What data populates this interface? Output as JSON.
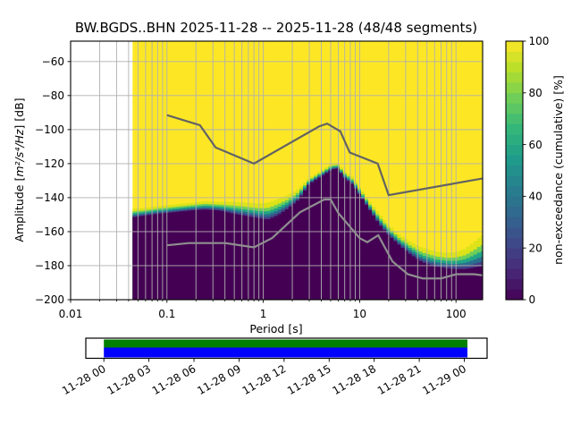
{
  "title": "BW.BGDS..BHN   2025-11-28 -- 2025-11-28  (48/48 segments)",
  "axes": {
    "xlabel": "Period [s]",
    "ylabel_prefix": "Amplitude [",
    "ylabel_math": "m²/s⁴/Hz",
    "ylabel_suffix": "] [dB]",
    "x_tick_labels": [
      "0.01",
      "0.1",
      "1",
      "10",
      "100"
    ],
    "x_tick_values": [
      0.01,
      0.1,
      1,
      10,
      100
    ],
    "x_minor_subs": [
      2,
      3,
      4,
      5,
      6,
      7,
      8,
      9
    ],
    "y_tick_labels": [
      "−60",
      "−80",
      "−100",
      "−120",
      "−140",
      "−160",
      "−180",
      "−200"
    ],
    "y_tick_values": [
      -60,
      -80,
      -100,
      -120,
      -140,
      -160,
      -180,
      -200
    ],
    "xlim": [
      0.01,
      189
    ],
    "ylim": [
      -200,
      -48
    ],
    "x_scale": "log",
    "grid": true
  },
  "colorbar": {
    "label": "non-exceedance (cumulative) [%]",
    "tick_labels": [
      "100",
      "80",
      "60",
      "40",
      "20",
      "0"
    ],
    "tick_values": [
      100,
      80,
      60,
      40,
      20,
      0
    ],
    "lim": [
      0,
      100
    ],
    "colormap": "viridis",
    "steps": 25
  },
  "chart_data": {
    "type": "heatmap",
    "title": "BW.BGDS..BHN   2025-11-28 -- 2025-11-28  (48/48 segments)",
    "xlabel": "Period [s]",
    "ylabel": "Amplitude [m²/s⁴/Hz] [dB]",
    "colorbar_label": "non-exceedance (cumulative) [%]",
    "x_scale": "log",
    "xlim": [
      0.01,
      189
    ],
    "ylim": [
      -200,
      -48
    ],
    "value_lim": [
      0,
      100
    ],
    "period_range": [
      0.044,
      189
    ],
    "distribution_band": {
      "description": "cumulative PPSD: non-exceedance is 100% (yellow) above top_db and 0% (dark purple) below bottom_db",
      "periods": [
        0.045,
        0.06,
        0.08,
        0.12,
        0.18,
        0.25,
        0.35,
        0.5,
        0.7,
        0.9,
        1.1,
        1.4,
        1.8,
        2.3,
        3.0,
        4.0,
        5.0,
        5.8,
        7.0,
        8.5,
        10.5,
        13,
        16,
        20,
        26,
        34,
        45,
        60,
        80,
        100,
        125,
        155,
        190
      ],
      "top_db": [
        -146.5,
        -146,
        -145,
        -144,
        -143,
        -142,
        -142.5,
        -142.5,
        -143,
        -143.5,
        -143,
        -141,
        -138.5,
        -135,
        -128.5,
        -124,
        -120.5,
        -119.5,
        -124.5,
        -128,
        -135.5,
        -143,
        -149.5,
        -156,
        -162,
        -166,
        -169.5,
        -171.5,
        -172.5,
        -172,
        -170,
        -166,
        -161.5
      ],
      "bottom_db": [
        -151.5,
        -150.5,
        -149.5,
        -148.5,
        -147.5,
        -147,
        -147.5,
        -149.5,
        -151,
        -152,
        -153,
        -150.5,
        -146.5,
        -141.5,
        -132,
        -127.5,
        -124,
        -122.5,
        -128.5,
        -132.5,
        -140,
        -148,
        -155.5,
        -162,
        -168,
        -173.5,
        -178,
        -180.5,
        -181.5,
        -182,
        -182,
        -181,
        -180
      ]
    },
    "noise_models": {
      "nhnm": [
        [
          0.1,
          -91.5
        ],
        [
          0.22,
          -97.4
        ],
        [
          0.32,
          -110.5
        ],
        [
          0.8,
          -120.0
        ],
        [
          3.8,
          -98.1
        ],
        [
          4.6,
          -96.5
        ],
        [
          6.3,
          -101.0
        ],
        [
          7.9,
          -113.5
        ],
        [
          15.4,
          -120.0
        ],
        [
          20.0,
          -138.5
        ],
        [
          190,
          -128.7
        ]
      ],
      "nlnm": [
        [
          0.1,
          -168.0
        ],
        [
          0.17,
          -166.7
        ],
        [
          0.4,
          -166.7
        ],
        [
          0.8,
          -169.2
        ],
        [
          1.24,
          -163.7
        ],
        [
          2.4,
          -148.6
        ],
        [
          4.3,
          -141.1
        ],
        [
          5.0,
          -141.1
        ],
        [
          6.0,
          -149.0
        ],
        [
          10.0,
          -163.8
        ],
        [
          12.0,
          -166.2
        ],
        [
          15.6,
          -162.1
        ],
        [
          21.9,
          -177.5
        ],
        [
          31.6,
          -185.0
        ],
        [
          45.0,
          -187.5
        ],
        [
          70.0,
          -187.5
        ],
        [
          101.0,
          -185.0
        ],
        [
          154.0,
          -185.0
        ],
        [
          190,
          -185.7
        ]
      ]
    }
  },
  "timeline": {
    "tick_labels": [
      "11-28 00",
      "11-28 03",
      "11-28 06",
      "11-28 09",
      "11-28 12",
      "11-28 15",
      "11-28 18",
      "11-28 21",
      "11-29 00"
    ],
    "coverage_start_frac": 0.045,
    "coverage_end_frac": 0.951,
    "bands": [
      {
        "name": "coverage-full",
        "color": "#008000"
      },
      {
        "name": "coverage-data",
        "color": "#0000ff"
      }
    ]
  },
  "colors": {
    "background": "#ffffff",
    "mesh_high": "#fde725",
    "mesh_low": "#440154",
    "grid": "#b0b0b0",
    "frame": "#000000",
    "nhnm_line": "#636363",
    "nlnm_line": "#8f8f8f",
    "timeline_green": "#008000",
    "timeline_blue": "#0000ff",
    "band_stripes": [
      {
        "t": 0.0,
        "color": "#dde318"
      },
      {
        "t": 0.32,
        "color": "#6ece58"
      },
      {
        "t": 0.52,
        "color": "#21a585"
      },
      {
        "t": 0.7,
        "color": "#2c6d8e"
      },
      {
        "t": 0.86,
        "color": "#433e85"
      }
    ],
    "viridis_stops": [
      "#440154",
      "#482878",
      "#3e4a89",
      "#31688e",
      "#26828e",
      "#1f9e89",
      "#35b779",
      "#6ece58",
      "#b5de2b",
      "#fde725"
    ]
  }
}
